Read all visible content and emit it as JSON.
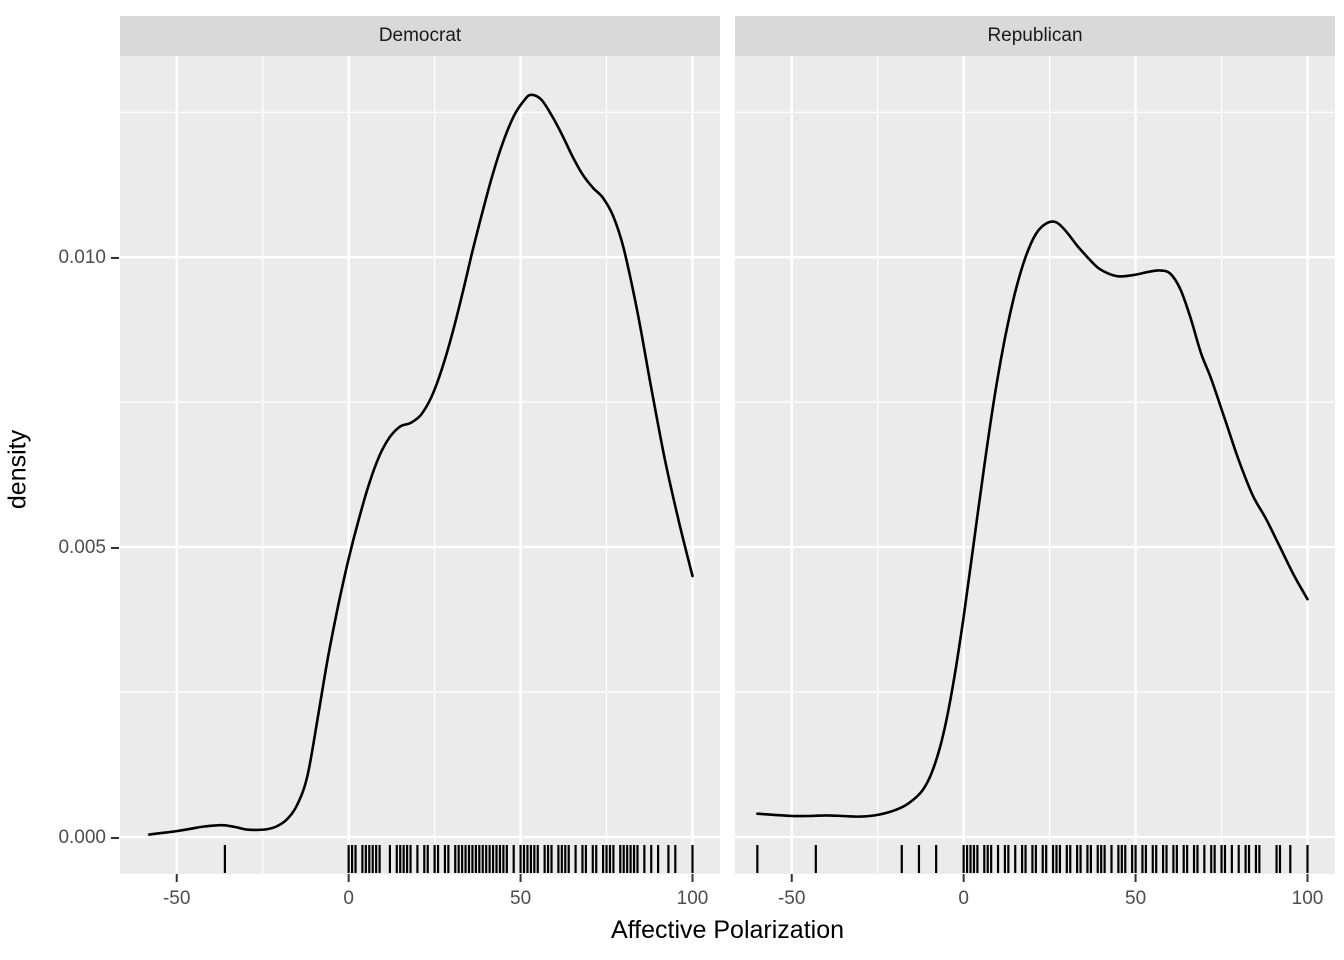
{
  "chart_data": {
    "type": "line",
    "subtype": "faceted-density-with-rug",
    "title": "",
    "xlabel": "Affective Polarization",
    "ylabel": "density",
    "x_domain": [
      -66.5,
      108
    ],
    "y_domain": [
      -0.00064,
      0.01347
    ],
    "x_ticks": {
      "values": [
        -50,
        0,
        50,
        100
      ],
      "labels": [
        "-50",
        "0",
        "50",
        "100"
      ]
    },
    "y_ticks": {
      "values": [
        0,
        0.005,
        0.01
      ],
      "labels": [
        "0.000",
        "0.005",
        "0.010"
      ]
    },
    "x_minor": [
      -25,
      25,
      75
    ],
    "y_minor": [
      0.0025,
      0.0075,
      0.0125
    ],
    "grid": true,
    "legend": "none",
    "colors": {
      "panel_bg": "#EBEBEB",
      "strip_bg": "#D9D9D9",
      "grid": "#FFFFFF",
      "curve": "#000000",
      "strip_text": "#1a1a1a",
      "tick_label": "#4d4d4d",
      "axis_title": "#000000"
    },
    "facets": [
      {
        "label": "Democrat",
        "curve": [
          [
            -58,
            4e-05
          ],
          [
            -54,
            7e-05
          ],
          [
            -50,
            0.0001
          ],
          [
            -46,
            0.00014
          ],
          [
            -42,
            0.00018
          ],
          [
            -38,
            0.0002
          ],
          [
            -36,
            0.0002
          ],
          [
            -33,
            0.00017
          ],
          [
            -30,
            0.00013
          ],
          [
            -27,
            0.00012
          ],
          [
            -24,
            0.00013
          ],
          [
            -21,
            0.00018
          ],
          [
            -18,
            0.0003
          ],
          [
            -15,
            0.00055
          ],
          [
            -12,
            0.00105
          ],
          [
            -9,
            0.00205
          ],
          [
            -6,
            0.0031
          ],
          [
            -3,
            0.004
          ],
          [
            0,
            0.0048
          ],
          [
            3,
            0.00549
          ],
          [
            6,
            0.0061
          ],
          [
            9,
            0.00658
          ],
          [
            12,
            0.0069
          ],
          [
            15,
            0.00708
          ],
          [
            18,
            0.00714
          ],
          [
            21,
            0.00728
          ],
          [
            24,
            0.00758
          ],
          [
            27,
            0.00805
          ],
          [
            30,
            0.00865
          ],
          [
            33,
            0.00935
          ],
          [
            36,
            0.0101
          ],
          [
            39,
            0.0108
          ],
          [
            42,
            0.01145
          ],
          [
            45,
            0.012
          ],
          [
            48,
            0.01243
          ],
          [
            51,
            0.0127
          ],
          [
            53,
            0.0128
          ],
          [
            56,
            0.01272
          ],
          [
            59,
            0.01245
          ],
          [
            62,
            0.01212
          ],
          [
            65,
            0.01175
          ],
          [
            68,
            0.01143
          ],
          [
            71,
            0.0112
          ],
          [
            74,
            0.01102
          ],
          [
            77,
            0.0107
          ],
          [
            80,
            0.01015
          ],
          [
            84,
            0.00905
          ],
          [
            88,
            0.00775
          ],
          [
            92,
            0.0065
          ],
          [
            96,
            0.00545
          ],
          [
            100,
            0.0045
          ]
        ],
        "rug": [
          -36,
          0,
          1,
          2,
          4,
          5,
          6,
          7,
          8,
          9,
          12,
          14,
          15,
          16,
          17,
          18,
          20,
          22,
          23,
          25,
          26,
          28,
          29,
          31,
          32,
          33,
          34,
          35,
          36,
          37,
          38,
          39,
          40,
          41,
          42,
          43,
          44,
          45,
          46,
          48,
          50,
          51,
          52,
          53,
          54,
          55,
          57,
          58,
          59,
          61,
          62,
          63,
          64,
          66,
          68,
          69,
          71,
          72,
          74,
          75,
          76,
          77,
          79,
          80,
          81,
          82,
          83,
          84,
          86,
          88,
          90,
          93,
          95,
          100
        ]
      },
      {
        "label": "Republican",
        "curve": [
          [
            -60,
            0.0004
          ],
          [
            -55,
            0.00038
          ],
          [
            -50,
            0.00036
          ],
          [
            -45,
            0.00036
          ],
          [
            -40,
            0.00037
          ],
          [
            -35,
            0.00036
          ],
          [
            -30,
            0.00035
          ],
          [
            -25,
            0.00038
          ],
          [
            -20,
            0.00046
          ],
          [
            -16,
            0.00058
          ],
          [
            -12,
            0.0008
          ],
          [
            -9,
            0.00115
          ],
          [
            -6,
            0.00175
          ],
          [
            -3,
            0.00265
          ],
          [
            0,
            0.0038
          ],
          [
            3,
            0.0051
          ],
          [
            6,
            0.0064
          ],
          [
            9,
            0.0076
          ],
          [
            12,
            0.0086
          ],
          [
            15,
            0.0094
          ],
          [
            18,
            0.01
          ],
          [
            21,
            0.0104
          ],
          [
            24,
            0.01058
          ],
          [
            27,
            0.0106
          ],
          [
            30,
            0.01043
          ],
          [
            33,
            0.0102
          ],
          [
            36,
            0.01
          ],
          [
            39,
            0.00982
          ],
          [
            42,
            0.00972
          ],
          [
            45,
            0.00967
          ],
          [
            48,
            0.00968
          ],
          [
            51,
            0.00971
          ],
          [
            54,
            0.00975
          ],
          [
            57,
            0.00977
          ],
          [
            60,
            0.00972
          ],
          [
            63,
            0.00945
          ],
          [
            66,
            0.00895
          ],
          [
            69,
            0.00835
          ],
          [
            72,
            0.0079
          ],
          [
            76,
            0.0072
          ],
          [
            80,
            0.0065
          ],
          [
            84,
            0.0059
          ],
          [
            88,
            0.00548
          ],
          [
            92,
            0.005
          ],
          [
            96,
            0.00452
          ],
          [
            100,
            0.0041
          ]
        ],
        "rug": [
          -60,
          -43,
          -18,
          -13,
          -8,
          0,
          1,
          2,
          3,
          4,
          6,
          7,
          8,
          10,
          12,
          13,
          15,
          17,
          18,
          20,
          21,
          23,
          24,
          26,
          27,
          28,
          30,
          31,
          33,
          34,
          36,
          37,
          39,
          40,
          41,
          43,
          45,
          46,
          47,
          49,
          50,
          52,
          53,
          55,
          56,
          58,
          59,
          61,
          62,
          64,
          65,
          67,
          68,
          70,
          72,
          73,
          75,
          76,
          78,
          80,
          82,
          83,
          85,
          86,
          91,
          92,
          95,
          100
        ]
      }
    ]
  }
}
